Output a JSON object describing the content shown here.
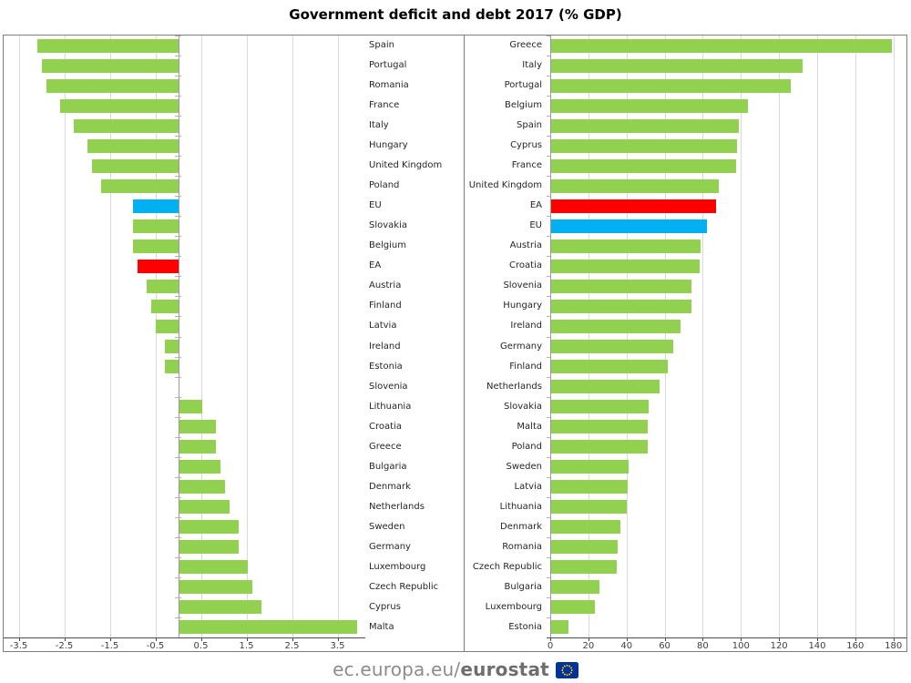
{
  "title": "Government deficit and debt 2017 (% GDP)",
  "footer": {
    "url_prefix": "ec.europa.eu/",
    "url_bold": "eurostat",
    "flag_icon": "eu-flag-icon"
  },
  "colors": {
    "green": "#92D050",
    "blue": "#00B0F0",
    "red": "#FF0000",
    "gridline": "#D9D9D9",
    "axis_line": "#4D4D4D",
    "spine": "#9A9A9A",
    "category_tick": "#B3B3B3",
    "frame_border": "#7F7F7F",
    "title_text": "#000000",
    "label_text": "#262626",
    "footer_text": "#8C8C8C",
    "footer_text_bold": "#6E6E6E",
    "flag_blue": "#003399",
    "flag_stars": "#FFCC00"
  },
  "chart_data": [
    {
      "id": "deficit",
      "type": "bar",
      "orientation": "horizontal",
      "title": "",
      "xlabel": "",
      "ylabel": "",
      "grid": true,
      "legend": false,
      "labels_position": "right",
      "tick_decimals": 1,
      "xticks": [
        -3.5,
        -2.5,
        -1.5,
        -0.5,
        0.5,
        1.5,
        2.5,
        3.5
      ],
      "xlim": [
        -3.83,
        4.11
      ],
      "rows": [
        {
          "label": "Spain",
          "value": -3.1,
          "color": "green"
        },
        {
          "label": "Portugal",
          "value": -3.0,
          "color": "green"
        },
        {
          "label": "Romania",
          "value": -2.9,
          "color": "green"
        },
        {
          "label": "France",
          "value": -2.6,
          "color": "green"
        },
        {
          "label": "Italy",
          "value": -2.3,
          "color": "green"
        },
        {
          "label": "Hungary",
          "value": -2.0,
          "color": "green"
        },
        {
          "label": "United Kingdom",
          "value": -1.9,
          "color": "green"
        },
        {
          "label": "Poland",
          "value": -1.7,
          "color": "green"
        },
        {
          "label": "EU",
          "value": -1.0,
          "color": "blue"
        },
        {
          "label": "Slovakia",
          "value": -1.0,
          "color": "green"
        },
        {
          "label": "Belgium",
          "value": -1.0,
          "color": "green"
        },
        {
          "label": "EA",
          "value": -0.9,
          "color": "red"
        },
        {
          "label": "Austria",
          "value": -0.7,
          "color": "green"
        },
        {
          "label": "Finland",
          "value": -0.6,
          "color": "green"
        },
        {
          "label": "Latvia",
          "value": -0.5,
          "color": "green"
        },
        {
          "label": "Ireland",
          "value": -0.3,
          "color": "green"
        },
        {
          "label": "Estonia",
          "value": -0.3,
          "color": "green"
        },
        {
          "label": "Slovenia",
          "value": 0.0,
          "color": "green"
        },
        {
          "label": "Lithuania",
          "value": 0.5,
          "color": "green"
        },
        {
          "label": "Croatia",
          "value": 0.8,
          "color": "green"
        },
        {
          "label": "Greece",
          "value": 0.8,
          "color": "green"
        },
        {
          "label": "Bulgaria",
          "value": 0.9,
          "color": "green"
        },
        {
          "label": "Denmark",
          "value": 1.0,
          "color": "green"
        },
        {
          "label": "Netherlands",
          "value": 1.1,
          "color": "green"
        },
        {
          "label": "Sweden",
          "value": 1.3,
          "color": "green"
        },
        {
          "label": "Germany",
          "value": 1.3,
          "color": "green"
        },
        {
          "label": "Luxembourg",
          "value": 1.5,
          "color": "green"
        },
        {
          "label": "Czech Republic",
          "value": 1.6,
          "color": "green"
        },
        {
          "label": "Cyprus",
          "value": 1.8,
          "color": "green"
        },
        {
          "label": "Malta",
          "value": 3.9,
          "color": "green"
        }
      ]
    },
    {
      "id": "debt",
      "type": "bar",
      "orientation": "horizontal",
      "title": "",
      "xlabel": "",
      "ylabel": "",
      "grid": true,
      "legend": false,
      "labels_position": "left",
      "tick_decimals": 0,
      "xticks": [
        0,
        20,
        40,
        60,
        80,
        100,
        120,
        140,
        160,
        180
      ],
      "xlim": [
        0,
        186.8
      ],
      "rows": [
        {
          "label": "Greece",
          "value": 178.6,
          "color": "green"
        },
        {
          "label": "Italy",
          "value": 131.8,
          "color": "green"
        },
        {
          "label": "Portugal",
          "value": 125.7,
          "color": "green"
        },
        {
          "label": "Belgium",
          "value": 103.1,
          "color": "green"
        },
        {
          "label": "Spain",
          "value": 98.3,
          "color": "green"
        },
        {
          "label": "Cyprus",
          "value": 97.5,
          "color": "green"
        },
        {
          "label": "France",
          "value": 97.0,
          "color": "green"
        },
        {
          "label": "United Kingdom",
          "value": 87.7,
          "color": "green"
        },
        {
          "label": "EA",
          "value": 86.7,
          "color": "red"
        },
        {
          "label": "EU",
          "value": 81.6,
          "color": "blue"
        },
        {
          "label": "Austria",
          "value": 78.4,
          "color": "green"
        },
        {
          "label": "Croatia",
          "value": 78.0,
          "color": "green"
        },
        {
          "label": "Slovenia",
          "value": 73.6,
          "color": "green"
        },
        {
          "label": "Hungary",
          "value": 73.6,
          "color": "green"
        },
        {
          "label": "Ireland",
          "value": 68.0,
          "color": "green"
        },
        {
          "label": "Germany",
          "value": 64.1,
          "color": "green"
        },
        {
          "label": "Finland",
          "value": 61.4,
          "color": "green"
        },
        {
          "label": "Netherlands",
          "value": 56.7,
          "color": "green"
        },
        {
          "label": "Slovakia",
          "value": 50.9,
          "color": "green"
        },
        {
          "label": "Malta",
          "value": 50.8,
          "color": "green"
        },
        {
          "label": "Poland",
          "value": 50.6,
          "color": "green"
        },
        {
          "label": "Sweden",
          "value": 40.6,
          "color": "green"
        },
        {
          "label": "Latvia",
          "value": 40.1,
          "color": "green"
        },
        {
          "label": "Lithuania",
          "value": 39.7,
          "color": "green"
        },
        {
          "label": "Denmark",
          "value": 36.4,
          "color": "green"
        },
        {
          "label": "Romania",
          "value": 35.0,
          "color": "green"
        },
        {
          "label": "Czech Republic",
          "value": 34.6,
          "color": "green"
        },
        {
          "label": "Bulgaria",
          "value": 25.4,
          "color": "green"
        },
        {
          "label": "Luxembourg",
          "value": 23.0,
          "color": "green"
        },
        {
          "label": "Estonia",
          "value": 9.0,
          "color": "green"
        }
      ]
    }
  ]
}
